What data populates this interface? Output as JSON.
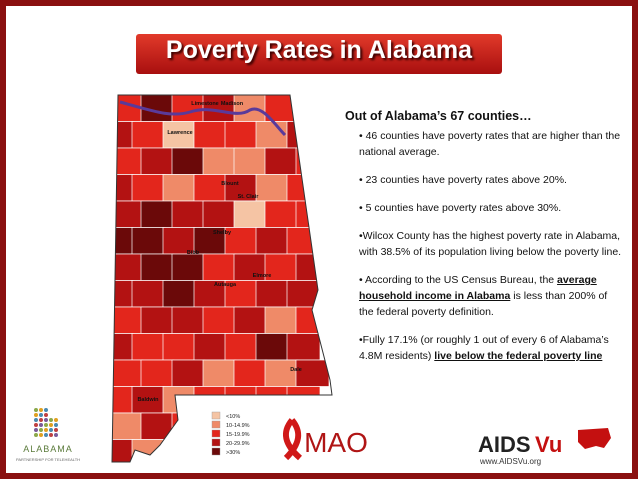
{
  "title": "Poverty Rates in Alabama",
  "map": {
    "counties": [
      "Limestone",
      "Madison",
      "Lawrence",
      "Blount",
      "St. Clair",
      "Shelby",
      "Bibb",
      "Autauga",
      "Elmore",
      "Dale",
      "Baldwin"
    ],
    "legend": [
      {
        "label": "<10%",
        "color": "#f5c4a4"
      },
      {
        "label": "10-14.9%",
        "color": "#ef8a68"
      },
      {
        "label": "15-19.9%",
        "color": "#e3261c"
      },
      {
        "label": "20-29.9%",
        "color": "#b31212"
      },
      {
        "label": ">30%",
        "color": "#6b0909"
      }
    ]
  },
  "panel": {
    "heading": "Out of Alabama’s 67 counties…",
    "bullets": [
      "• 46 counties have poverty rates that are higher than the national average.",
      "• 23 counties have poverty rates above 20%.",
      "• 5 counties have poverty rates above 30%.",
      "•Wilcox County has the highest poverty rate in Alabama, with 38.5% of its population living below the poverty line."
    ],
    "bullet5": {
      "before": "• According to the US Census Bureau, the ",
      "bold": "average household income in Alabama",
      "after": " is less than 200% of the federal poverty definition."
    },
    "bullet6": {
      "before": "•Fully 17.1% (or roughly 1 out of every 6 of Alabama’s 4.8M residents) ",
      "bold": "live below the federal poverty line"
    }
  },
  "logos": {
    "alabama": "ALABAMA",
    "alabama_sub": "PARTNERSHIP FOR TELEHEALTH",
    "mao": "MAO",
    "aidsvu_a": "AIDS",
    "aidsvu_b": "Vu",
    "url": "www.AIDSVu.org"
  }
}
